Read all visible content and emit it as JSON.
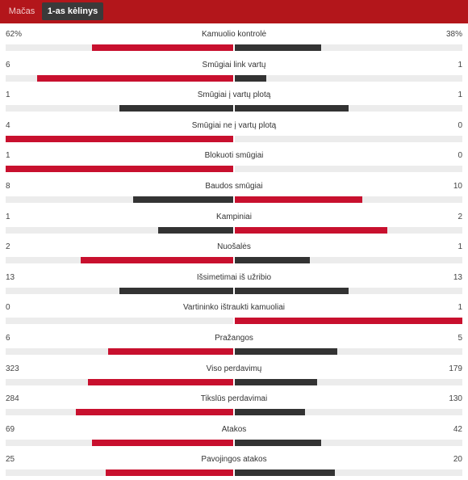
{
  "colors": {
    "header_bg": "#b3161b",
    "active_tab_bg": "#3a3a3a",
    "red": "#c8102e",
    "dark": "#333333",
    "track": "#ececec"
  },
  "tabs": [
    {
      "label": "Mačas",
      "active": false
    },
    {
      "label": "1-as kėlinys",
      "active": true
    }
  ],
  "stats": [
    {
      "label": "Kamuolio kontrolė",
      "home": "62%",
      "away": "38%",
      "home_frac": 0.62,
      "away_frac": 0.38,
      "home_color": "red",
      "away_color": "dark"
    },
    {
      "label": "Smūgiai link vartų",
      "home": "6",
      "away": "1",
      "home_frac": 0.86,
      "away_frac": 0.14,
      "home_color": "red",
      "away_color": "dark"
    },
    {
      "label": "Smūgiai į vartų plotą",
      "home": "1",
      "away": "1",
      "home_frac": 0.5,
      "away_frac": 0.5,
      "home_color": "dark",
      "away_color": "dark"
    },
    {
      "label": "Smūgiai ne į vartų plotą",
      "home": "4",
      "away": "0",
      "home_frac": 1.0,
      "away_frac": 0.0,
      "home_color": "red",
      "away_color": "dark"
    },
    {
      "label": "Blokuoti smūgiai",
      "home": "1",
      "away": "0",
      "home_frac": 1.0,
      "away_frac": 0.0,
      "home_color": "red",
      "away_color": "dark"
    },
    {
      "label": "Baudos smūgiai",
      "home": "8",
      "away": "10",
      "home_frac": 0.44,
      "away_frac": 0.56,
      "home_color": "dark",
      "away_color": "red"
    },
    {
      "label": "Kampiniai",
      "home": "1",
      "away": "2",
      "home_frac": 0.33,
      "away_frac": 0.67,
      "home_color": "dark",
      "away_color": "red"
    },
    {
      "label": "Nuošalės",
      "home": "2",
      "away": "1",
      "home_frac": 0.67,
      "away_frac": 0.33,
      "home_color": "red",
      "away_color": "dark"
    },
    {
      "label": "Išsimetimai iš užribio",
      "home": "13",
      "away": "13",
      "home_frac": 0.5,
      "away_frac": 0.5,
      "home_color": "dark",
      "away_color": "dark"
    },
    {
      "label": "Vartininko ištraukti kamuoliai",
      "home": "0",
      "away": "1",
      "home_frac": 0.0,
      "away_frac": 1.0,
      "home_color": "dark",
      "away_color": "red"
    },
    {
      "label": "Pražangos",
      "home": "6",
      "away": "5",
      "home_frac": 0.55,
      "away_frac": 0.45,
      "home_color": "red",
      "away_color": "dark"
    },
    {
      "label": "Viso perdavimų",
      "home": "323",
      "away": "179",
      "home_frac": 0.64,
      "away_frac": 0.36,
      "home_color": "red",
      "away_color": "dark"
    },
    {
      "label": "Tikslūs perdavimai",
      "home": "284",
      "away": "130",
      "home_frac": 0.69,
      "away_frac": 0.31,
      "home_color": "red",
      "away_color": "dark"
    },
    {
      "label": "Atakos",
      "home": "69",
      "away": "42",
      "home_frac": 0.62,
      "away_frac": 0.38,
      "home_color": "red",
      "away_color": "dark"
    },
    {
      "label": "Pavojingos atakos",
      "home": "25",
      "away": "20",
      "home_frac": 0.56,
      "away_frac": 0.44,
      "home_color": "red",
      "away_color": "dark"
    }
  ]
}
